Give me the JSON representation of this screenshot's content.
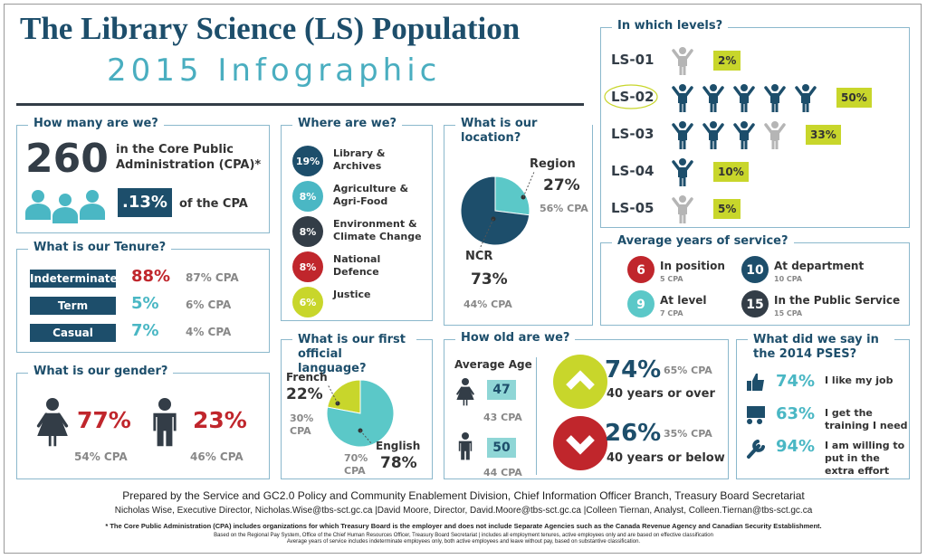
{
  "header": {
    "title": "The Library Science (LS) Population",
    "subtitle": "2015 Infographic"
  },
  "count": {
    "heading": "How many are we?",
    "number": "260",
    "text": "in the Core Public Administration (CPA)*",
    "share": ".13%",
    "share_text": "of the CPA"
  },
  "tenure": {
    "heading": "What is our Tenure?",
    "rows": [
      {
        "label": "Indeterminate",
        "value": "88%",
        "cpa": "87% CPA",
        "color": "#c0262c"
      },
      {
        "label": "Term",
        "value": "5%",
        "cpa": "6% CPA",
        "color": "#4ab7c4"
      },
      {
        "label": "Casual",
        "value": "7%",
        "cpa": "4% CPA",
        "color": "#4ab7c4"
      }
    ]
  },
  "gender": {
    "heading": "What is our gender?",
    "female": "77%",
    "female_cpa": "54% CPA",
    "male": "23%",
    "male_cpa": "46% CPA"
  },
  "where": {
    "heading": "Where are we?",
    "items": [
      {
        "value": "19%",
        "label": "Library & Archives",
        "color": "#1d4e6b"
      },
      {
        "value": "8%",
        "label": "Agriculture & Agri-Food",
        "color": "#4ab7c4"
      },
      {
        "value": "8%",
        "label": "Environment & Climate Change",
        "color": "#333d47"
      },
      {
        "value": "8%",
        "label": "National Defence",
        "color": "#c0262c"
      },
      {
        "value": "6%",
        "label": "Justice",
        "color": "#c8d62b"
      }
    ]
  },
  "location": {
    "heading": "What is our location?",
    "slices": [
      {
        "name": "Region",
        "value": 27,
        "value_label": "27%",
        "cpa": "56% CPA",
        "color": "#5bc8c8"
      },
      {
        "name": "NCR",
        "value": 73,
        "value_label": "73%",
        "cpa": "44% CPA",
        "color": "#1d4e6b"
      }
    ]
  },
  "language": {
    "heading": "What is our first official language?",
    "slices": [
      {
        "name": "French",
        "value": 22,
        "value_label": "22%",
        "cpa": "30% CPA",
        "color": "#c8d62b"
      },
      {
        "name": "English",
        "value": 78,
        "value_label": "78%",
        "cpa": "70% CPA",
        "color": "#5bc8c8"
      }
    ]
  },
  "age": {
    "heading": "How old are we?",
    "avg_label": "Average Age",
    "female": "47",
    "female_cpa": "43 CPA",
    "male": "50",
    "male_cpa": "44 CPA",
    "over": {
      "value": "74%",
      "cpa": "65% CPA",
      "label": "40 years or over"
    },
    "under": {
      "value": "26%",
      "cpa": "35% CPA",
      "label": "40 years or below"
    }
  },
  "levels": {
    "heading": "In which levels?",
    "rows": [
      {
        "label": "LS-01",
        "value": 2,
        "value_label": "2%"
      },
      {
        "label": "LS-02",
        "value": 50,
        "value_label": "50%"
      },
      {
        "label": "LS-03",
        "value": 33,
        "value_label": "33%"
      },
      {
        "label": "LS-04",
        "value": 10,
        "value_label": "10%"
      },
      {
        "label": "LS-05",
        "value": 5,
        "value_label": "5%"
      }
    ]
  },
  "service": {
    "heading": "Average years of service?",
    "items": [
      {
        "value": "6",
        "label": "In position",
        "cpa": "5 CPA",
        "color": "#c0262c"
      },
      {
        "value": "9",
        "label": "At level",
        "cpa": "7 CPA",
        "color": "#5bc8c8"
      },
      {
        "value": "10",
        "label": "At department",
        "cpa": "10 CPA",
        "color": "#1d4e6b"
      },
      {
        "value": "15",
        "label": "In the Public Service",
        "cpa": "15 CPA",
        "color": "#333d47"
      }
    ]
  },
  "pses": {
    "heading": "What did we say in the 2014 PSES?",
    "items": [
      {
        "value": "74%",
        "label": "I like my job"
      },
      {
        "value": "63%",
        "label": "I get the training I need"
      },
      {
        "value": "94%",
        "label": "I am willing to put in the extra effort"
      }
    ]
  },
  "footer": {
    "prepared": "Prepared by the Service and GC2.0 Policy and Community Enablement Division, Chief Information Officer Branch, Treasury Board Secretariat",
    "contacts": "Nicholas Wise, Executive Director, Nicholas.Wise@tbs-sct.gc.ca |David Moore, Director, David.Moore@tbs-sct.gc.ca |Colleen Tiernan, Analyst, Colleen.Tiernan@tbs-sct.gc.ca",
    "note": "* The Core Public Administration (CPA) includes organizations for which Treasury Board is the employer and does not include Separate Agencies such as the Canada Revenue Agency and Canadian Security Establishment.",
    "source": "Based on the Regional Pay System, Office of the Chief Human Resources Officer, Treasury Board Secretariat | includes all employment tenures, active employees only and are based on effective classification",
    "service_note": "Average years of service includes indeterminate employees only, both active employees and leave without pay, based on substantive classification."
  }
}
